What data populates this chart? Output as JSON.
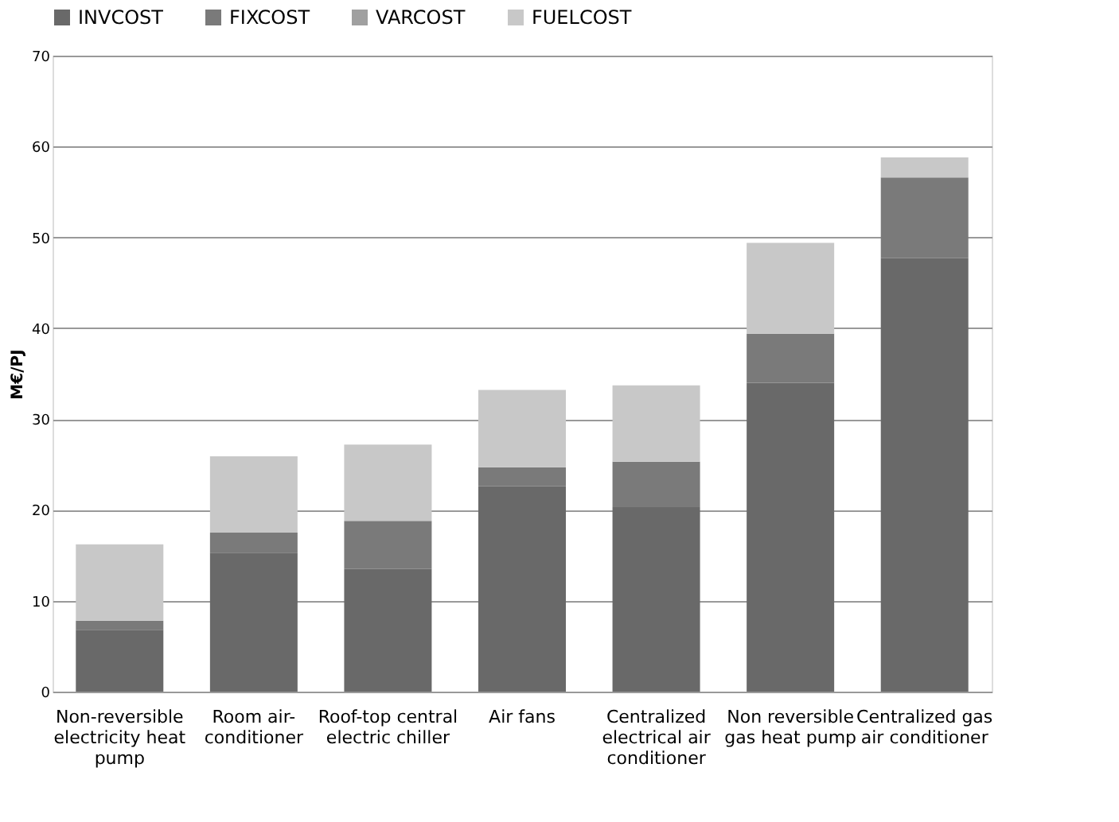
{
  "chart_data": {
    "type": "bar",
    "stacked": true,
    "ylabel": "M€/PJ",
    "categories": [
      "Non-reversible electricity heat pump",
      "Room air-conditioner",
      "Roof-top central electric chiller",
      "Air fans",
      "Centralized electrical air conditioner",
      "Non reversible gas heat pump",
      "Centralized gas air conditioner"
    ],
    "series": [
      {
        "name": "INVCOST",
        "color": "#696969",
        "values": [
          6.8,
          15.3,
          13.5,
          22.6,
          20.3,
          34.0,
          47.7
        ]
      },
      {
        "name": "FIXCOST",
        "color": "#7a7a7a",
        "values": [
          1.0,
          2.2,
          5.3,
          2.1,
          5.0,
          5.4,
          8.9
        ]
      },
      {
        "name": "VARCOST",
        "color": "#a0a0a0",
        "values": [
          0,
          0,
          0,
          0,
          0,
          0,
          0
        ]
      },
      {
        "name": "FUELCOST",
        "color": "#c8c8c8",
        "values": [
          8.4,
          8.4,
          8.4,
          8.5,
          8.4,
          10.0,
          2.2
        ]
      }
    ],
    "ylim": [
      0,
      70
    ],
    "yticks": [
      0,
      10,
      20,
      30,
      40,
      50,
      60,
      70
    ],
    "grid": "y",
    "legend": "top"
  }
}
